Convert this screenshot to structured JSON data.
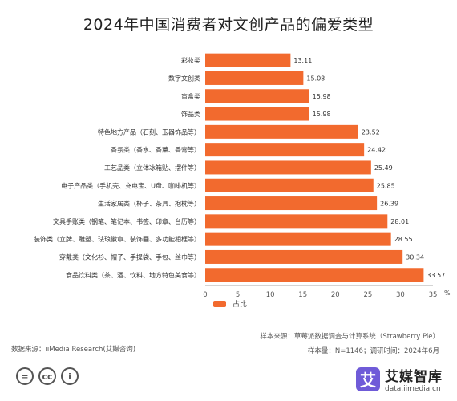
{
  "chart_data": {
    "type": "bar",
    "orientation": "horizontal",
    "title": "2024年中国消费者对文创产品的偏爱类型",
    "unit_label": "%",
    "categories": [
      "彩妆类",
      "数字文创类",
      "盲盒类",
      "饰品类",
      "特色地方产品（石刻、玉器饰品等）",
      "香氛类（香水、香薰、香膏等）",
      "工艺品类（立体冰箱贴、摆件等）",
      "电子产品类（手机壳、充电宝、U盘、咖啡机等）",
      "生活家居类（杯子、茶具、抱枕等）",
      "文具手账类（钢笔、笔记本、书签、印章、台历等）",
      "装饰类（立牌、雕塑、珐琅徽章、装饰画、多功能相框等）",
      "穿戴类（文化衫、帽子、手提袋、手包、丝巾等）",
      "食品饮料类（茶、酒、饮料、地方特色美食等）"
    ],
    "values": [
      13.11,
      15.08,
      15.98,
      15.98,
      23.52,
      24.42,
      25.49,
      25.85,
      26.39,
      28.01,
      28.55,
      30.34,
      33.57
    ],
    "series": [
      {
        "name": "占比",
        "color": "#f26a2e"
      }
    ],
    "xlim": [
      0,
      35
    ],
    "xticks": [
      0,
      5,
      10,
      15,
      20,
      25,
      30,
      35
    ],
    "grid": false,
    "legend": "bottom"
  },
  "sources": {
    "sample_source": "样本来源：草莓派数据调查与计算系统（Strawberry Pie）",
    "sample_size": "样本量：N=1146；调研时间：2024年6月",
    "data_source": "数据来源：iiMedia Research(艾媒咨询)"
  },
  "brand": {
    "name": "艾媒智库",
    "url": "data.iimedia.cn",
    "mark": "艾"
  }
}
